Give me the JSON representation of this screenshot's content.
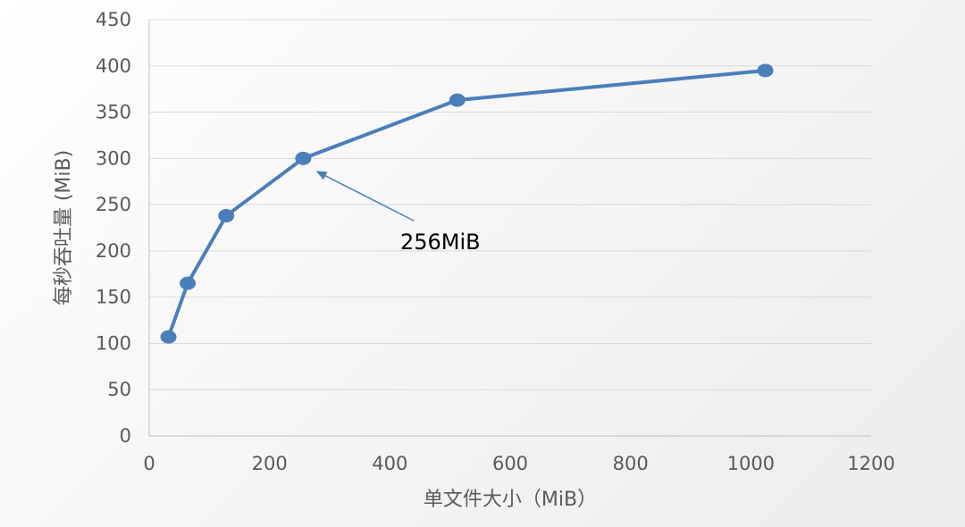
{
  "chart_data": {
    "type": "line",
    "xlabel": "单文件大小（MiB）",
    "ylabel": "每秒吞吐量 (MiB)",
    "xlim": [
      0,
      1200
    ],
    "ylim": [
      0,
      450
    ],
    "xticks": [
      0,
      200,
      400,
      600,
      800,
      1000,
      1200
    ],
    "yticks": [
      0,
      50,
      100,
      150,
      200,
      250,
      300,
      350,
      400,
      450
    ],
    "grid": true,
    "legend": "none",
    "series": [
      {
        "x": [
          32,
          64,
          128,
          256,
          512,
          1024
        ],
        "y": [
          107,
          165,
          238,
          300,
          363,
          395
        ]
      }
    ],
    "annotations": [
      {
        "text": "256MiB",
        "point": [
          256,
          300
        ]
      }
    ],
    "colors": {
      "line": "#4a7ebb",
      "grid": "#d9d9d9",
      "axis": "#bfbfbf",
      "text": "#595959"
    }
  }
}
